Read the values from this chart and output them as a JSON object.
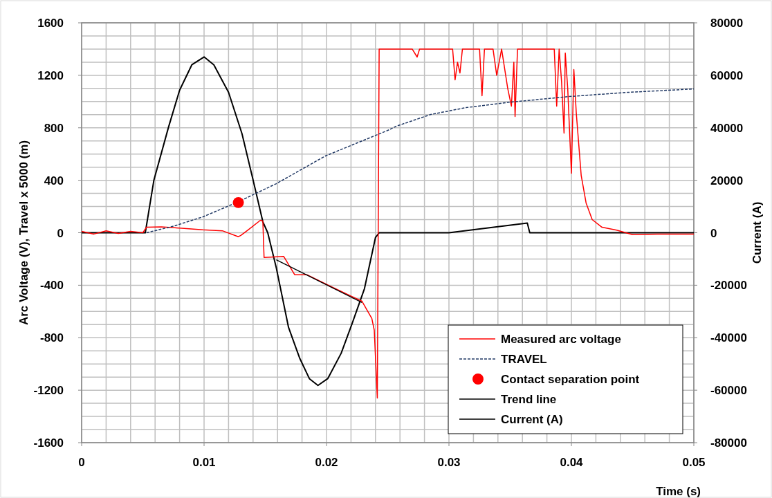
{
  "chart_data": {
    "type": "line",
    "xlabel": "Time (s)",
    "ylabel": "Arc Voltage (V), Travel x 5000 (m)",
    "y2label": "Current (A)",
    "xlim": [
      0,
      0.05
    ],
    "xticks": [
      0,
      0.01,
      0.02,
      0.03,
      0.04,
      0.05
    ],
    "ylim": [
      -1600,
      1600
    ],
    "yticks": [
      -1600,
      -1200,
      -800,
      -400,
      0,
      400,
      800,
      1200,
      1600
    ],
    "y2lim": [
      -80000,
      80000
    ],
    "y2ticks": [
      -80000,
      -60000,
      -40000,
      -20000,
      0,
      20000,
      40000,
      60000,
      80000
    ],
    "grid": true,
    "legend": "bottom right",
    "series": [
      {
        "name": "Measured arc voltage",
        "color": "#ff0000",
        "x": [
          0,
          0.001,
          0.002,
          0.003,
          0.004,
          0.005,
          0.0053,
          0.0065,
          0.008,
          0.0099,
          0.0115,
          0.0128,
          0.013,
          0.0136,
          0.0146,
          0.0148,
          0.0149,
          0.0165,
          0.0174,
          0.0184,
          0.0203,
          0.0221,
          0.0229,
          0.0237,
          0.0239,
          0.02415,
          0.0243,
          0.027,
          0.0274,
          0.0276,
          0.0303,
          0.0305,
          0.0307,
          0.0309,
          0.0311,
          0.0325,
          0.0327,
          0.0329,
          0.0336,
          0.0339,
          0.0343,
          0.0348,
          0.0351,
          0.0353,
          0.0354,
          0.0356,
          0.0358,
          0.0386,
          0.0388,
          0.039,
          0.0392,
          0.0394,
          0.0395,
          0.0397,
          0.04,
          0.0402,
          0.0404,
          0.0408,
          0.0412,
          0.0417,
          0.0425,
          0.0437,
          0.045,
          0.047,
          0.05
        ],
        "values": [
          10,
          -10,
          15,
          -5,
          10,
          0,
          42,
          45,
          35,
          22,
          15,
          -30,
          -20,
          22,
          95,
          90,
          -188,
          -180,
          -320,
          -320,
          -407,
          -487,
          -522,
          -653,
          -742,
          -1260,
          1400,
          1400,
          1339,
          1400,
          1400,
          1165,
          1300,
          1218,
          1400,
          1400,
          1044,
          1400,
          1400,
          1200,
          1400,
          1100,
          965,
          1300,
          886,
          1400,
          1400,
          1400,
          965,
          1400,
          1150,
          759,
          1370,
          1100,
          453,
          1244,
          912,
          437,
          227,
          100,
          42,
          20,
          -15,
          -10,
          -10
        ]
      },
      {
        "name": "TRAVEL",
        "color": "#203864",
        "line_style": "dashed",
        "x": [
          0.0053,
          0.0075,
          0.0099,
          0.0127,
          0.0159,
          0.0199,
          0.025,
          0.0257,
          0.0285,
          0.0314,
          0.0351,
          0.0398,
          0.0446,
          0.05
        ],
        "values": [
          0,
          50,
          121,
          232,
          374,
          585,
          780,
          812,
          901,
          954,
          996,
          1038,
          1070,
          1096
        ]
      },
      {
        "name": "Contact separation point",
        "color": "#ff0000",
        "type": "scatter",
        "marker": "circle",
        "x": [
          0.0128
        ],
        "values": [
          230
        ]
      },
      {
        "name": "Trend line",
        "color": "#000000",
        "x": [
          0.0159,
          0.0229
        ],
        "values": [
          -206,
          -532
        ]
      },
      {
        "name": "Current (A)",
        "color": "#000000",
        "axis": "y2",
        "x": [
          0,
          0.002,
          0.004,
          0.0052,
          0.0059,
          0.0071,
          0.008,
          0.009,
          0.01,
          0.0108,
          0.012,
          0.0131,
          0.0141,
          0.0148,
          0.0152,
          0.0159,
          0.0169,
          0.0178,
          0.0186,
          0.0193,
          0.0201,
          0.0212,
          0.0221,
          0.0231,
          0.024,
          0.0243,
          0.03,
          0.0364,
          0.0366,
          0.04,
          0.05
        ],
        "values": [
          0,
          0,
          0,
          0,
          20000,
          40300,
          54300,
          64000,
          67000,
          64000,
          53500,
          37700,
          18200,
          4200,
          0,
          -13400,
          -36100,
          -47700,
          -55600,
          -58200,
          -55600,
          -45900,
          -34500,
          -21300,
          -1800,
          0,
          0,
          3700,
          0,
          0,
          0
        ]
      }
    ]
  }
}
